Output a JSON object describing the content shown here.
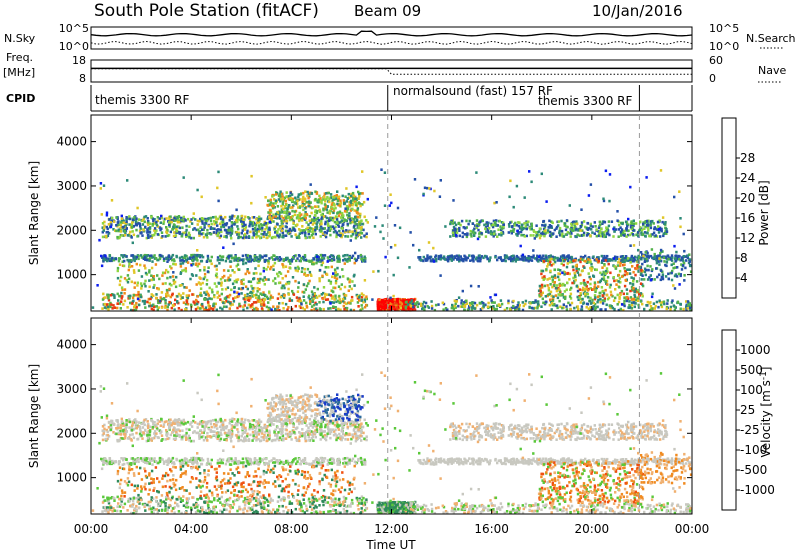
{
  "header": {
    "station": "South Pole Station (fitACF)",
    "beam": "Beam 09",
    "date": "10/Jan/2016"
  },
  "params_panel": {
    "left_labels": [
      "N.Sky",
      "Freq.",
      "[MHz]",
      "CPID"
    ],
    "right_labels": [
      "N.Search",
      "Nave"
    ],
    "nsky_ticks": [
      "10^5",
      "10^0"
    ],
    "freq_ticks": [
      "18",
      "8"
    ],
    "right_ticks_top": [
      "10^5",
      "10^0"
    ],
    "right_ticks_bottom": [
      "60",
      "0"
    ]
  },
  "cpid_bar": {
    "segments": [
      {
        "label": "themis 3300 RF",
        "start_hour": 0,
        "end_hour": 11.85
      },
      {
        "label": "normalsound (fast) 157 RF",
        "start_hour": 11.85,
        "end_hour": 21.9
      },
      {
        "label": "themis 3300 RF",
        "start_hour": 18.0,
        "end_hour": 21.9
      }
    ]
  },
  "time_axis": {
    "label": "Time UT",
    "ticks": [
      "00:00",
      "04:00",
      "08:00",
      "12:00",
      "16:00",
      "20:00",
      "00:00"
    ]
  },
  "chart_data": [
    {
      "type": "heatmap",
      "name": "power",
      "xlabel": "Time UT",
      "ylabel": "Slant Range [km]",
      "xlim_hours": [
        0,
        24
      ],
      "ylim": [
        180,
        4600
      ],
      "yticks": [
        "1000",
        "2000",
        "3000",
        "4000"
      ],
      "colorbar": {
        "label": "Power [dB]",
        "ticks": [
          "4",
          "8",
          "12",
          "16",
          "20",
          "24",
          "28"
        ],
        "colors": [
          "#0a1cf0",
          "#2450a8",
          "#2c8a78",
          "#52b24a",
          "#8fd640",
          "#e0c628",
          "#ee8a1a",
          "#e83a12",
          "#ff0000"
        ]
      },
      "bands": [
        {
          "t": [
            0.5,
            11
          ],
          "range": [
            1900,
            2300
          ],
          "level": "mixed"
        },
        {
          "t": [
            0.5,
            11
          ],
          "range": [
            1350,
            1450
          ],
          "level": "mixed"
        },
        {
          "t": [
            11.5,
            12.8
          ],
          "range": [
            200,
            500
          ],
          "level": "high"
        },
        {
          "t": [
            14.5,
            23
          ],
          "range": [
            1900,
            2250
          ],
          "level": "mixed"
        },
        {
          "t": [
            13,
            24
          ],
          "range": [
            1350,
            1450
          ],
          "level": "low"
        },
        {
          "t": [
            18,
            22
          ],
          "range": [
            400,
            1400
          ],
          "level": "mixed"
        }
      ]
    },
    {
      "type": "heatmap",
      "name": "velocity",
      "xlabel": "Time UT",
      "ylabel": "Slant Range [km]",
      "xlim_hours": [
        0,
        24
      ],
      "ylim": [
        180,
        4600
      ],
      "yticks": [
        "1000",
        "2000",
        "3000",
        "4000"
      ],
      "colorbar": {
        "label": "Velocity [m s-1]",
        "ticks": [
          "1000",
          "500",
          "100",
          "25",
          "-25",
          "-100",
          "-500",
          "-1000"
        ],
        "colors": [
          "#1a3cc8",
          "#2a6a9a",
          "#2e8a5a",
          "#5ac83a",
          "#c8c8c0",
          "#f0b070",
          "#f08a20",
          "#f05010",
          "#f00000"
        ]
      }
    }
  ]
}
